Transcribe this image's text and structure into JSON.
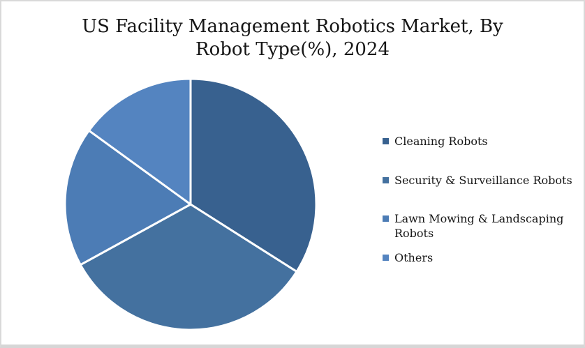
{
  "chart_data": {
    "type": "pie",
    "title": "US Facility Management Robotics Market, By Robot Type(%), 2024",
    "categories": [
      "Cleaning Robots",
      "Security & Surveillance Robots",
      "Lawn Mowing & Landscaping Robots",
      "Others"
    ],
    "values": [
      34,
      33,
      18,
      15
    ],
    "unit": "%",
    "colors": [
      "#38618f",
      "#44719f",
      "#4c7cb5",
      "#5484c0"
    ],
    "slice_border_color": "#ffffff",
    "start_angle_deg": 0,
    "direction": "clockwise",
    "legend_position": "right",
    "data_labels": "none"
  }
}
